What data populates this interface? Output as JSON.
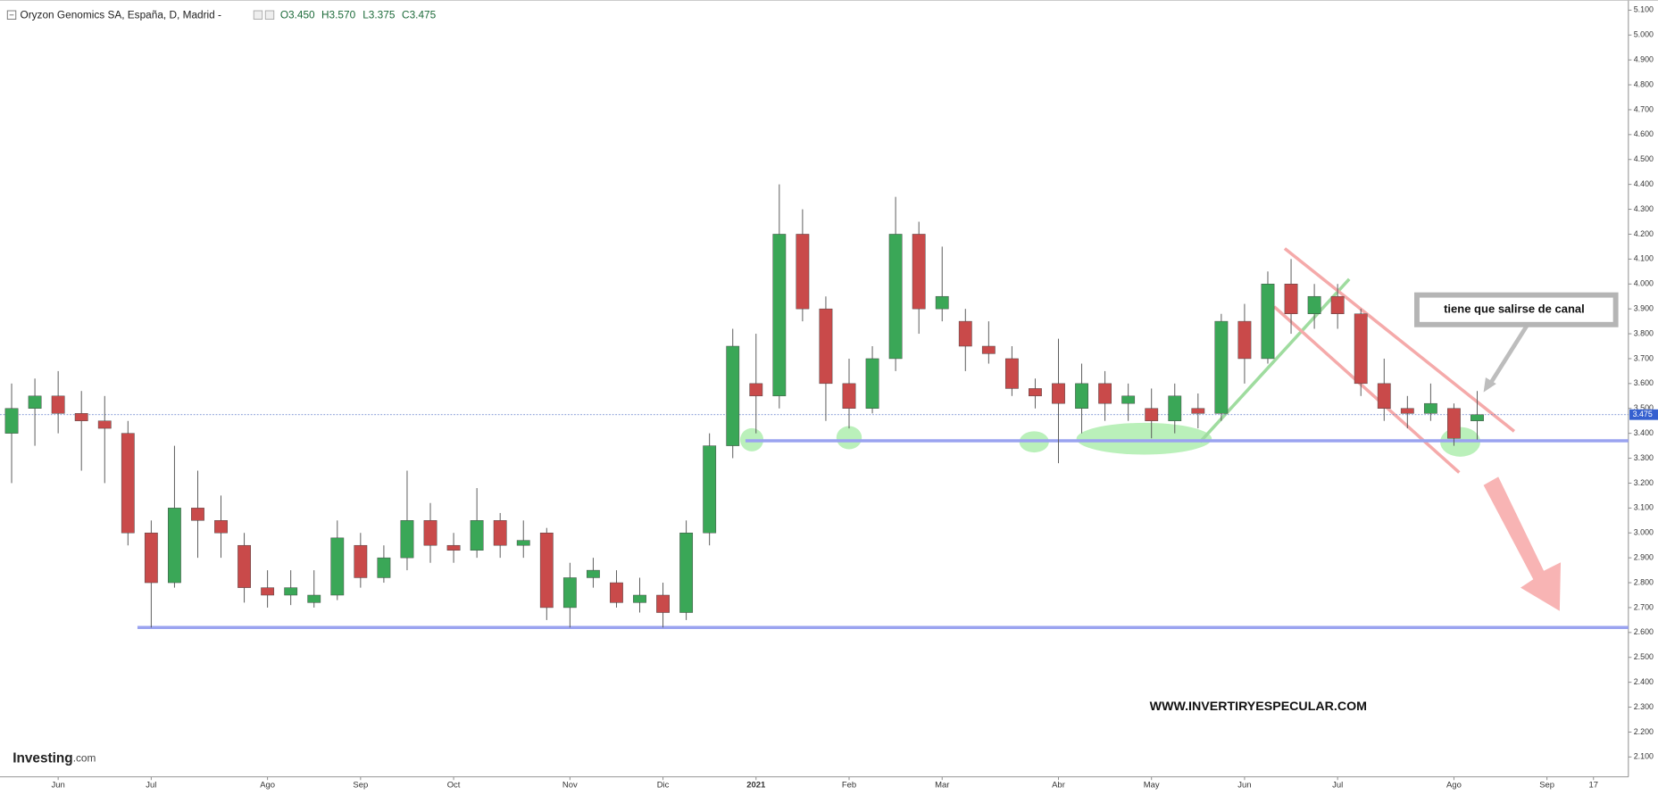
{
  "chart_data": {
    "type": "candlestick",
    "title": "Oryzon Genomics SA, España, D, Madrid -",
    "ohlc_labels": [
      "O3.450",
      "H3.570",
      "L3.375",
      "C3.475"
    ],
    "categories": [
      null,
      null,
      "Jun",
      null,
      null,
      null,
      "Jul",
      null,
      null,
      null,
      null,
      "Ago",
      null,
      null,
      null,
      "Sep",
      null,
      null,
      null,
      "Oct",
      null,
      null,
      null,
      null,
      "Nov",
      null,
      null,
      null,
      "Dic",
      null,
      null,
      null,
      "2021",
      null,
      null,
      null,
      "Feb",
      null,
      null,
      null,
      "Mar",
      null,
      null,
      null,
      null,
      "Abr",
      null,
      null,
      null,
      "May",
      null,
      null,
      null,
      "Jun",
      null,
      null,
      null,
      "Jul",
      null,
      null,
      null,
      null,
      "Ago",
      null,
      null,
      null,
      "Sep",
      null,
      "17",
      null
    ],
    "open": [
      3.4,
      3.5,
      3.55,
      3.48,
      3.45,
      3.4,
      3.0,
      2.8,
      3.1,
      3.05,
      2.95,
      2.78,
      2.75,
      2.72,
      2.75,
      2.95,
      2.82,
      2.9,
      3.05,
      2.95,
      2.93,
      3.05,
      2.95,
      3.0,
      2.7,
      2.82,
      2.8,
      2.72,
      2.75,
      2.68,
      3.0,
      3.35,
      3.6,
      3.55,
      4.2,
      3.9,
      3.6,
      3.5,
      3.7,
      4.2,
      3.9,
      3.85,
      3.75,
      3.7,
      3.58,
      3.6,
      3.5,
      3.6,
      3.52,
      3.5,
      3.45,
      3.5,
      3.48,
      3.85,
      3.7,
      4.0,
      3.88,
      3.95,
      3.88,
      3.6,
      3.5,
      3.48,
      3.5,
      3.45,
      null,
      null,
      null,
      null,
      null,
      null
    ],
    "high": [
      3.6,
      3.62,
      3.65,
      3.57,
      3.55,
      3.45,
      3.05,
      3.35,
      3.25,
      3.15,
      3.0,
      2.85,
      2.85,
      2.85,
      3.05,
      3.0,
      2.95,
      3.25,
      3.12,
      3.0,
      3.18,
      3.08,
      3.05,
      3.02,
      2.88,
      2.9,
      2.85,
      2.82,
      2.8,
      3.05,
      3.4,
      3.82,
      3.8,
      4.4,
      4.3,
      3.95,
      3.7,
      3.75,
      4.35,
      4.25,
      4.15,
      3.9,
      3.85,
      3.75,
      3.62,
      3.78,
      3.68,
      3.65,
      3.6,
      3.58,
      3.6,
      3.56,
      3.88,
      3.92,
      4.05,
      4.1,
      4.0,
      4.0,
      3.9,
      3.7,
      3.55,
      3.6,
      3.52,
      3.57,
      null,
      null,
      null,
      null,
      null,
      null
    ],
    "low": [
      3.2,
      3.35,
      3.4,
      3.25,
      3.2,
      2.95,
      2.62,
      2.78,
      2.9,
      2.9,
      2.72,
      2.7,
      2.71,
      2.7,
      2.73,
      2.78,
      2.8,
      2.85,
      2.88,
      2.88,
      2.9,
      2.9,
      2.9,
      2.65,
      2.62,
      2.78,
      2.7,
      2.68,
      2.62,
      2.65,
      2.95,
      3.3,
      3.4,
      3.5,
      3.85,
      3.45,
      3.42,
      3.48,
      3.65,
      3.8,
      3.85,
      3.65,
      3.68,
      3.55,
      3.5,
      3.28,
      3.4,
      3.45,
      3.45,
      3.38,
      3.4,
      3.42,
      3.45,
      3.6,
      3.68,
      3.8,
      3.82,
      3.82,
      3.55,
      3.45,
      3.42,
      3.45,
      3.35,
      3.375,
      null,
      null,
      null,
      null,
      null,
      null
    ],
    "close": [
      3.5,
      3.55,
      3.48,
      3.45,
      3.42,
      3.0,
      2.8,
      3.1,
      3.05,
      3.0,
      2.78,
      2.75,
      2.78,
      2.75,
      2.98,
      2.82,
      2.9,
      3.05,
      2.95,
      2.93,
      3.05,
      2.95,
      2.97,
      2.7,
      2.82,
      2.85,
      2.72,
      2.75,
      2.68,
      3.0,
      3.35,
      3.75,
      3.55,
      4.2,
      3.9,
      3.6,
      3.5,
      3.7,
      4.2,
      3.9,
      3.95,
      3.75,
      3.72,
      3.58,
      3.55,
      3.52,
      3.6,
      3.52,
      3.55,
      3.45,
      3.55,
      3.48,
      3.85,
      3.7,
      4.0,
      3.88,
      3.95,
      3.88,
      3.6,
      3.5,
      3.48,
      3.52,
      3.38,
      3.475,
      null,
      null,
      null,
      null,
      null,
      null
    ],
    "up_color": "#3aa757",
    "down_color": "#c94a4a",
    "ylim": [
      2.02,
      5.14
    ],
    "yticks": [
      {
        "value": 2.1,
        "label": "2.100"
      },
      {
        "value": 2.2,
        "label": "2.200"
      },
      {
        "value": 2.3,
        "label": "2.300"
      },
      {
        "value": 2.4,
        "label": "2.400"
      },
      {
        "value": 2.5,
        "label": "2.500"
      },
      {
        "value": 2.6,
        "label": "2.600"
      },
      {
        "value": 2.7,
        "label": "2.700"
      },
      {
        "value": 2.8,
        "label": "2.800"
      },
      {
        "value": 2.9,
        "label": "2.900"
      },
      {
        "value": 3.0,
        "label": "3.000"
      },
      {
        "value": 3.1,
        "label": "3.100"
      },
      {
        "value": 3.2,
        "label": "3.200"
      },
      {
        "value": 3.3,
        "label": "3.300"
      },
      {
        "value": 3.4,
        "label": "3.400"
      },
      {
        "value": 3.5,
        "label": "3.500"
      },
      {
        "value": 3.6,
        "label": "3.600"
      },
      {
        "value": 3.7,
        "label": "3.700"
      },
      {
        "value": 3.8,
        "label": "3.800"
      },
      {
        "value": 3.9,
        "label": "3.900"
      },
      {
        "value": 4.0,
        "label": "4.000"
      },
      {
        "value": 4.1,
        "label": "4.100"
      },
      {
        "value": 4.2,
        "label": "4.200"
      },
      {
        "value": 4.3,
        "label": "4.300"
      },
      {
        "value": 4.4,
        "label": "4.400"
      },
      {
        "value": 4.5,
        "label": "4.500"
      },
      {
        "value": 4.6,
        "label": "4.600"
      },
      {
        "value": 4.7,
        "label": "4.700"
      },
      {
        "value": 4.8,
        "label": "4.800"
      },
      {
        "value": 4.9,
        "label": "4.900"
      },
      {
        "value": 5.0,
        "label": "5.000"
      },
      {
        "value": 5.1,
        "label": "5.100"
      }
    ],
    "last_price": {
      "value": 3.475,
      "label": "3.475"
    },
    "hlines": [
      3.37,
      2.62
    ],
    "hline_color": "#9aa3f0",
    "annotations": [
      "tiene que salirse de canal",
      "WWW.INVERTIRYESPECULAR.COM"
    ],
    "logo": [
      "Investing",
      ".com"
    ]
  }
}
